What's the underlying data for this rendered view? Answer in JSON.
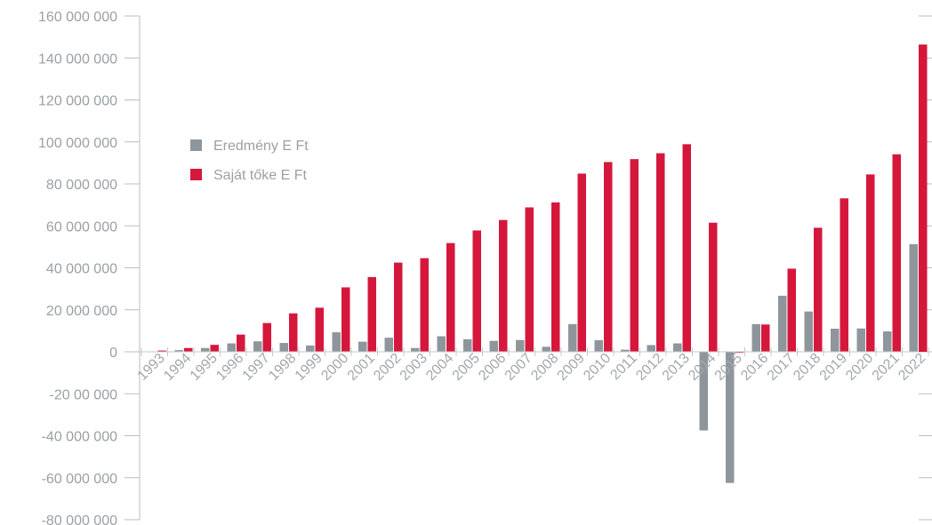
{
  "chart_data": {
    "type": "bar",
    "categories": [
      "1993",
      "1994",
      "1995",
      "1996",
      "1997",
      "1998",
      "1999",
      "2000",
      "2001",
      "2002",
      "2003",
      "2004",
      "2005",
      "2006",
      "2007",
      "2008",
      "2009",
      "2010",
      "2011",
      "2012",
      "2013",
      "2014",
      "2015",
      "2016",
      "2017",
      "2018",
      "2019",
      "2020",
      "2021",
      "2022"
    ],
    "series": [
      {
        "name": "Eredmény E Ft",
        "color": "#8e969c",
        "values": [
          0,
          800000,
          1800000,
          4000000,
          5000000,
          4200000,
          3000000,
          9300000,
          4800000,
          6700000,
          1800000,
          7400000,
          6000000,
          5200000,
          5600000,
          2400000,
          13200000,
          5500000,
          1000000,
          3200000,
          4000000,
          -37500000,
          -62500000,
          13200000,
          26700000,
          19200000,
          11000000,
          11100000,
          9700000,
          51300000
        ]
      },
      {
        "name": "Saját tőke E Ft",
        "color": "#d6173c",
        "values": [
          600000,
          1800000,
          3300000,
          8200000,
          13700000,
          18300000,
          21000000,
          30700000,
          35600000,
          42500000,
          44600000,
          51800000,
          57800000,
          62800000,
          68800000,
          71200000,
          84900000,
          90400000,
          91800000,
          94600000,
          98900000,
          61500000,
          -500000,
          13000000,
          39600000,
          59100000,
          73100000,
          84500000,
          94100000,
          146400000
        ]
      }
    ],
    "y_ticks": [
      "160 000 000",
      "140 000 000",
      "120 000 000",
      "100 000 000",
      "80 000 000",
      "60 000 000",
      "40 000 000",
      "20 000 000",
      "0",
      "-20  00 000",
      "-40 000 000",
      "-60 000 000",
      "-80 000 000"
    ],
    "ylim": [
      -80000000,
      160000000
    ],
    "legend_position": "upper-left",
    "grid": false
  }
}
